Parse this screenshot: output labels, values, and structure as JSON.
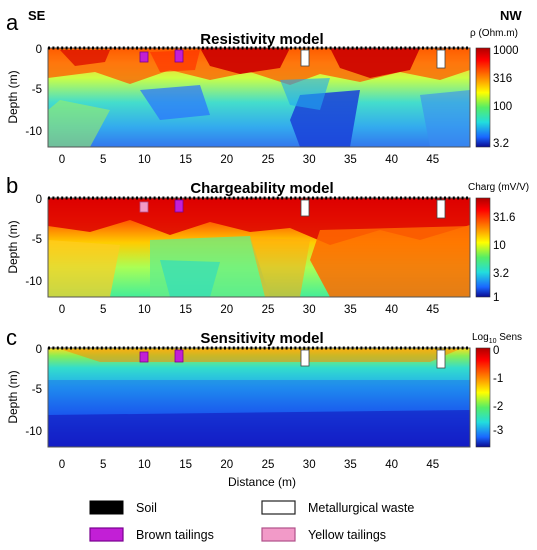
{
  "figure": {
    "direction_left": "SE",
    "direction_right": "NW",
    "panels": [
      {
        "letter": "a",
        "title": "Resistivity model",
        "colorbar_unit": "ρ (Ohm.m)",
        "colorbar_ticks": [
          "1000",
          "316",
          "100",
          "3.2"
        ],
        "colors": {
          "low": "#1a1aff",
          "mid": "#2ed3c8",
          "high": "#e60000"
        }
      },
      {
        "letter": "b",
        "title": "Chargeability model",
        "colorbar_unit": "Charg (mV/V)",
        "colorbar_ticks": [
          "31.6",
          "10",
          "3.2",
          "1"
        ],
        "colors": {
          "low": "#1a1aff",
          "mid": "#2ed3c8",
          "high": "#e60000"
        }
      },
      {
        "letter": "c",
        "title": "Sensitivity model",
        "colorbar_unit_main": "Log",
        "colorbar_unit_sub": "10",
        "colorbar_unit_tail": " Sens",
        "colorbar_ticks": [
          "0",
          "-1",
          "-2",
          "-3"
        ],
        "colors": {
          "low": "#1a1aff",
          "mid": "#2ed3c8",
          "high": "#e60000"
        }
      }
    ],
    "y_axis_label": "Depth (m)",
    "y_ticks": [
      "0",
      "-5",
      "-10"
    ],
    "x_axis_label": "Distance (m)",
    "x_ticks": [
      "0",
      "5",
      "10",
      "15",
      "20",
      "25",
      "30",
      "35",
      "40",
      "45"
    ],
    "legend": [
      {
        "label": "Soil",
        "swatch": "#000000",
        "border": "#000000"
      },
      {
        "label": "Metallurgical waste",
        "swatch": "#ffffff",
        "border": "#222222"
      },
      {
        "label": "Brown tailings",
        "swatch": "#c21fd6",
        "border": "#7a0090"
      },
      {
        "label": "Yellow tailings",
        "swatch": "#f29ac8",
        "border": "#b0508a"
      }
    ]
  }
}
